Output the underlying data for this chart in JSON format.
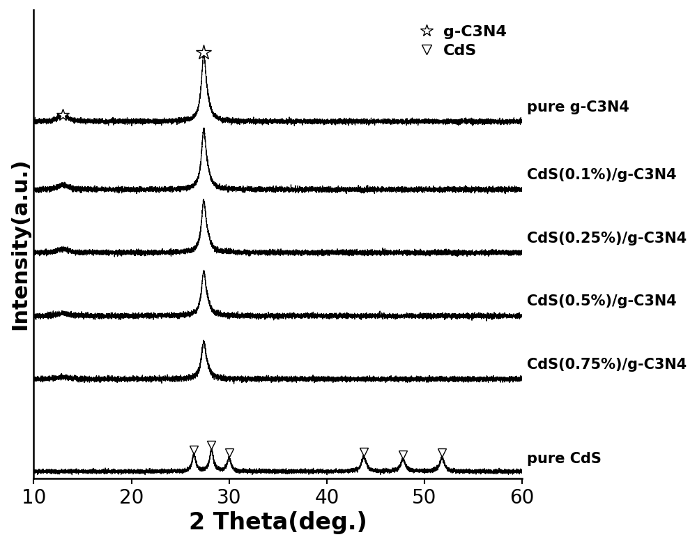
{
  "xlabel": "2 Theta(deg.)",
  "ylabel": "Intensity(a.u.)",
  "xlim": [
    10,
    60
  ],
  "ylim": [
    -0.15,
    9.5
  ],
  "x_ticks": [
    10,
    20,
    30,
    40,
    50,
    60
  ],
  "background_color": "#ffffff",
  "line_color": "#000000",
  "curve_labels": [
    "pure g-C3N4",
    "CdS(0.1%)/g-C3N4",
    "CdS(0.25%)/g-C3N4",
    "CdS(0.5%)/g-C3N4",
    "CdS(0.75%)/g-C3N4",
    "pure CdS"
  ],
  "offsets": [
    7.2,
    5.8,
    4.5,
    3.2,
    1.9,
    0.0
  ],
  "noise_amplitude": 0.025,
  "xlabel_fontsize": 24,
  "ylabel_fontsize": 22,
  "tick_fontsize": 20,
  "label_fontsize": 15,
  "legend_fontsize": 16,
  "figsize": [
    10.0,
    7.8
  ],
  "dpi": 100
}
